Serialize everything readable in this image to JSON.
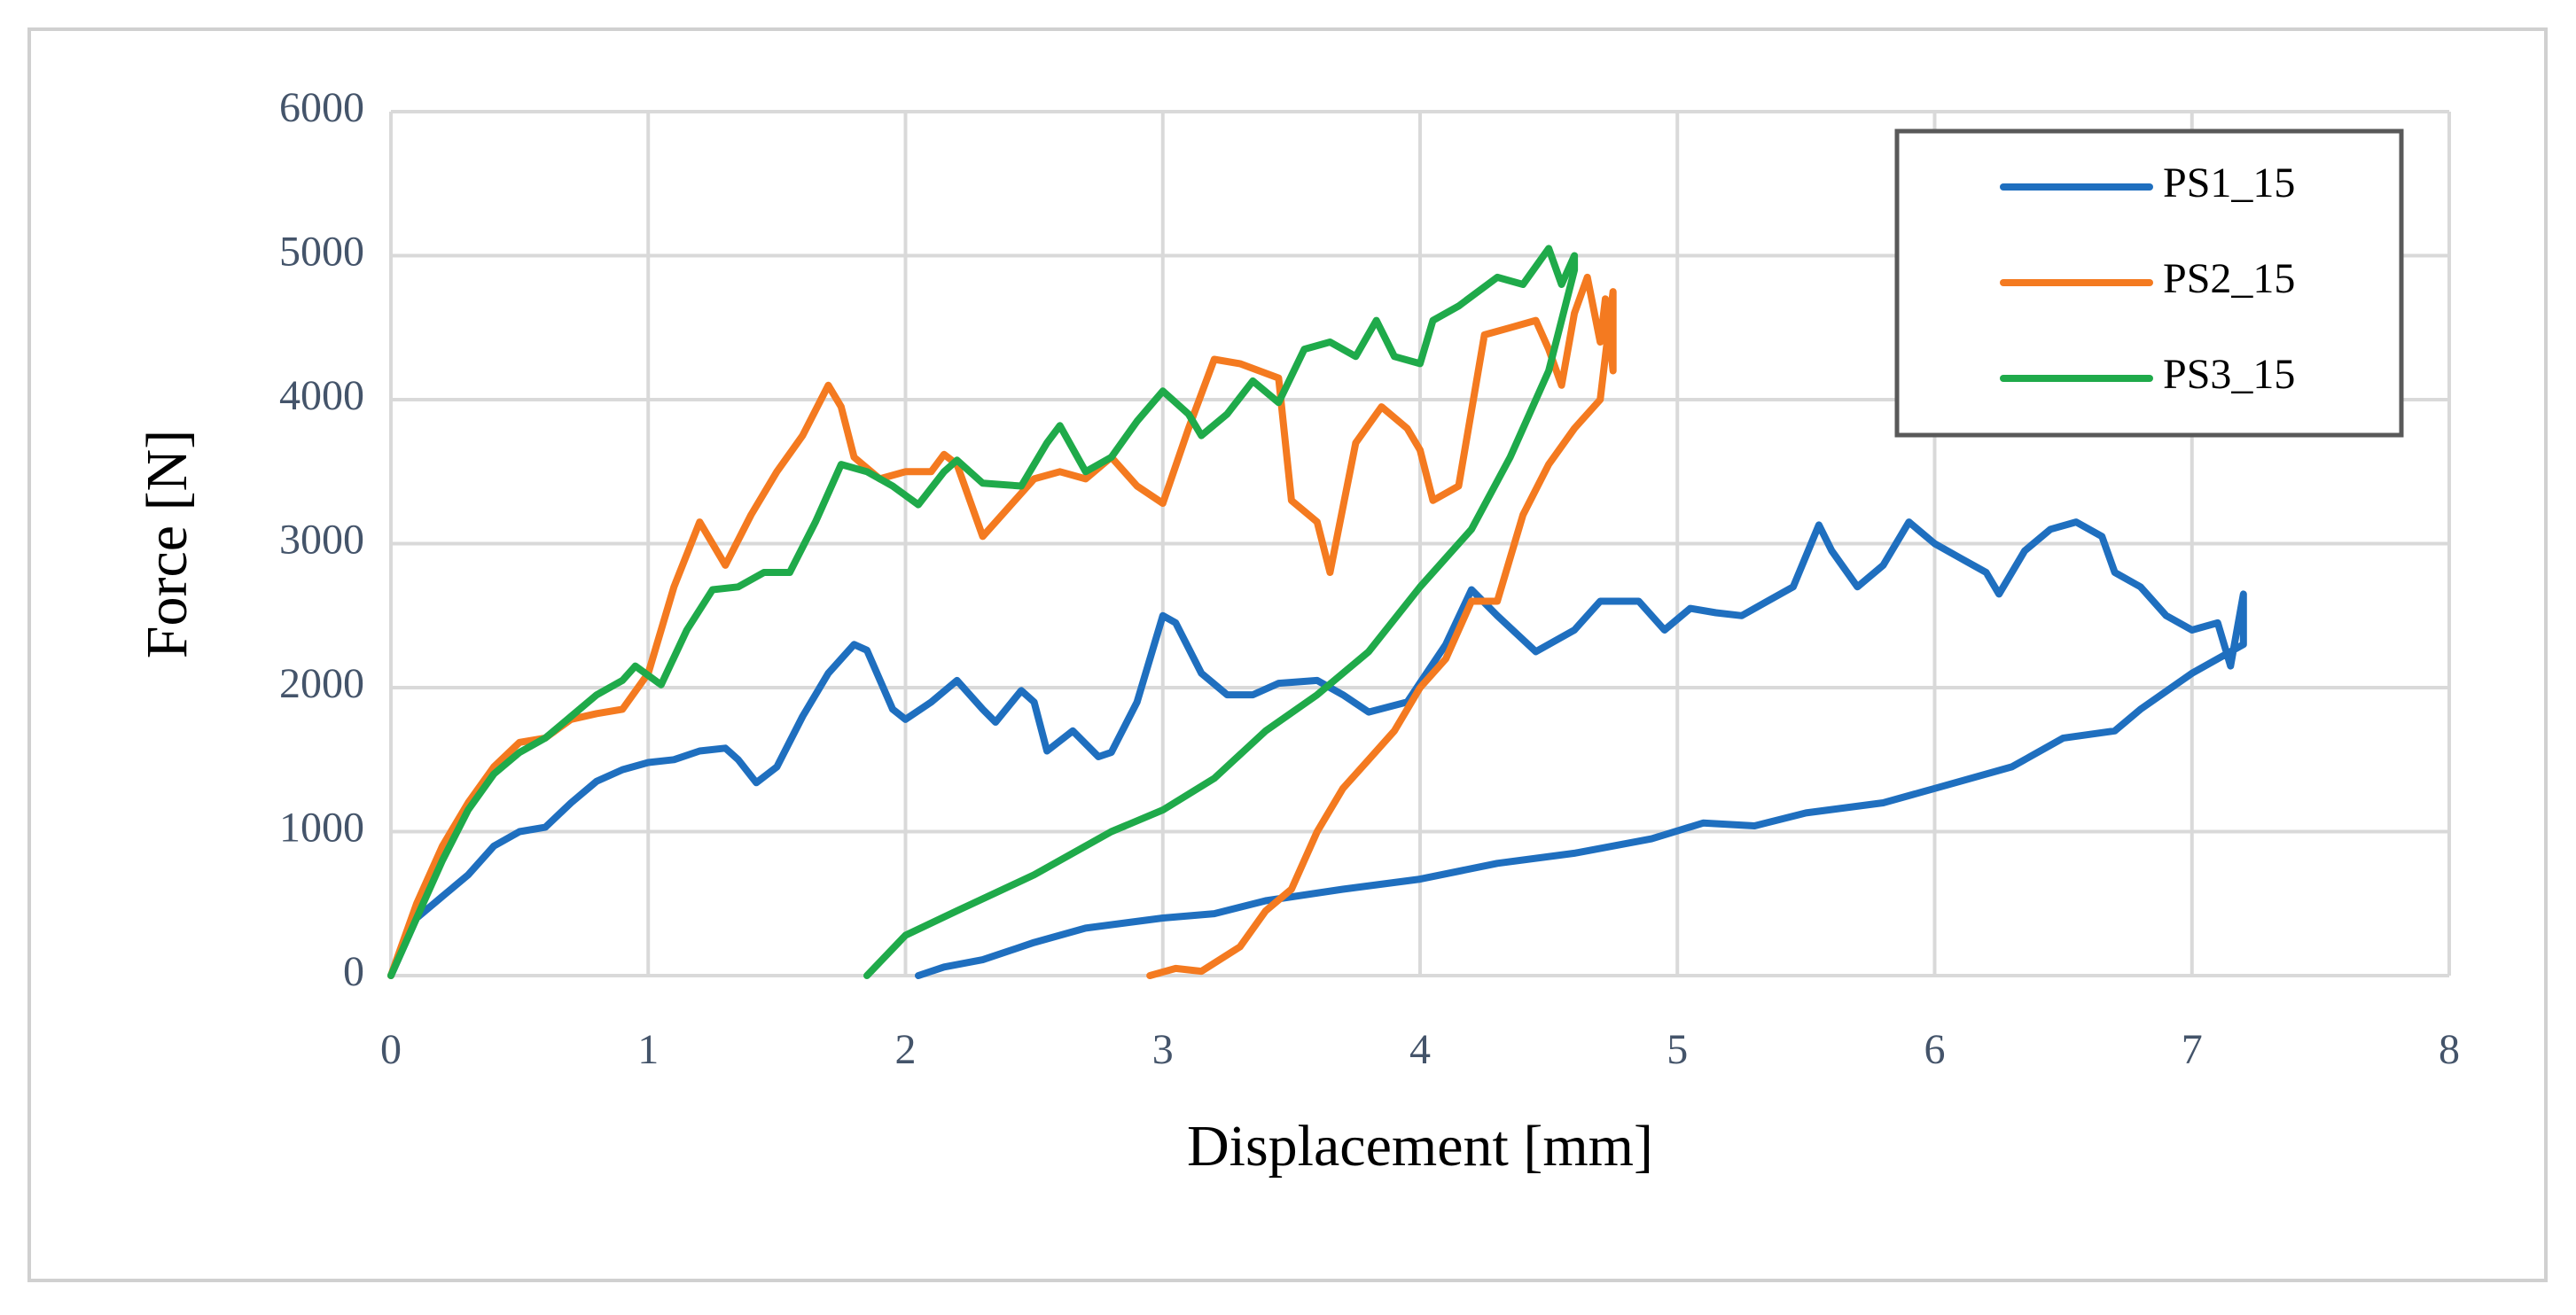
{
  "chart_data": {
    "type": "line",
    "x_label": "Displacement [mm]",
    "y_label": "Force [N]",
    "xlim": [
      0,
      8
    ],
    "ylim": [
      0,
      6000
    ],
    "xticks": [
      0,
      1,
      2,
      3,
      4,
      5,
      6,
      7,
      8
    ],
    "yticks": [
      0,
      1000,
      2000,
      3000,
      4000,
      5000,
      6000
    ],
    "grid": true,
    "legend": "upper right",
    "series": [
      {
        "name": "PS1_15",
        "color": "#1f6fbf",
        "x": [
          0,
          0.1,
          0.2,
          0.3,
          0.4,
          0.5,
          0.6,
          0.7,
          0.8,
          0.9,
          1.0,
          1.1,
          1.2,
          1.3,
          1.35,
          1.42,
          1.5,
          1.6,
          1.7,
          1.8,
          1.85,
          1.95,
          2.0,
          2.1,
          2.2,
          2.3,
          2.35,
          2.45,
          2.5,
          2.55,
          2.65,
          2.75,
          2.8,
          2.9,
          3.0,
          3.05,
          3.15,
          3.25,
          3.35,
          3.45,
          3.6,
          3.7,
          3.8,
          3.95,
          4.1,
          4.2,
          4.3,
          4.45,
          4.6,
          4.7,
          4.85,
          4.95,
          5.05,
          5.15,
          5.25,
          5.35,
          5.45,
          5.55,
          5.6,
          5.7,
          5.8,
          5.9,
          6.0,
          6.1,
          6.2,
          6.25,
          6.35,
          6.45,
          6.55,
          6.65,
          6.7,
          6.8,
          6.9,
          7.0,
          7.1,
          7.15,
          7.2,
          7.2,
          7.0,
          6.8,
          6.7,
          6.5,
          6.3,
          6.0,
          5.8,
          5.5,
          5.3,
          5.1,
          4.9,
          4.6,
          4.3,
          4.0,
          3.7,
          3.4,
          3.2,
          3.0,
          2.7,
          2.5,
          2.3,
          2.15,
          2.05
        ],
        "values": [
          0,
          400,
          550,
          700,
          900,
          1000,
          1030,
          1200,
          1350,
          1430,
          1480,
          1500,
          1560,
          1580,
          1500,
          1340,
          1450,
          1800,
          2100,
          2300,
          2260,
          1850,
          1780,
          1900,
          2050,
          1850,
          1760,
          1980,
          1900,
          1560,
          1700,
          1520,
          1550,
          1900,
          2500,
          2450,
          2100,
          1950,
          1950,
          2030,
          2050,
          1950,
          1830,
          1900,
          2300,
          2680,
          2500,
          2250,
          2400,
          2600,
          2600,
          2400,
          2550,
          2520,
          2500,
          2600,
          2700,
          3130,
          2950,
          2700,
          2850,
          3150,
          3000,
          2900,
          2800,
          2650,
          2950,
          3100,
          3150,
          3050,
          2800,
          2700,
          2500,
          2400,
          2450,
          2150,
          2650,
          2300,
          2100,
          1850,
          1700,
          1650,
          1450,
          1300,
          1200,
          1130,
          1040,
          1060,
          950,
          850,
          780,
          670,
          600,
          520,
          430,
          400,
          330,
          230,
          110,
          60,
          0
        ]
      },
      {
        "name": "PS2_15",
        "color": "#f47a20",
        "x": [
          0,
          0.1,
          0.2,
          0.3,
          0.4,
          0.5,
          0.6,
          0.7,
          0.8,
          0.9,
          1.0,
          1.1,
          1.2,
          1.25,
          1.3,
          1.4,
          1.5,
          1.6,
          1.7,
          1.75,
          1.8,
          1.9,
          2.0,
          2.1,
          2.15,
          2.2,
          2.3,
          2.4,
          2.5,
          2.6,
          2.7,
          2.8,
          2.9,
          3.0,
          3.1,
          3.2,
          3.3,
          3.45,
          3.5,
          3.6,
          3.65,
          3.75,
          3.85,
          3.95,
          4.0,
          4.05,
          4.15,
          4.25,
          4.35,
          4.45,
          4.5,
          4.55,
          4.6,
          4.65,
          4.7,
          4.72,
          4.75,
          4.75,
          4.7,
          4.6,
          4.5,
          4.4,
          4.3,
          4.2,
          4.1,
          4.0,
          3.9,
          3.8,
          3.7,
          3.6,
          3.5,
          3.4,
          3.3,
          3.15,
          3.05,
          2.95
        ],
        "values": [
          0,
          500,
          900,
          1200,
          1450,
          1620,
          1650,
          1780,
          1820,
          1850,
          2100,
          2700,
          3150,
          3000,
          2850,
          3200,
          3500,
          3750,
          4100,
          3950,
          3600,
          3450,
          3500,
          3500,
          3620,
          3550,
          3050,
          3250,
          3450,
          3500,
          3450,
          3600,
          3400,
          3280,
          3800,
          4280,
          4250,
          4150,
          3300,
          3150,
          2800,
          3700,
          3950,
          3800,
          3650,
          3300,
          3400,
          4450,
          4500,
          4550,
          4350,
          4100,
          4600,
          4850,
          4400,
          4700,
          4200,
          4750,
          4000,
          3800,
          3550,
          3200,
          2600,
          2600,
          2200,
          2000,
          1700,
          1500,
          1300,
          1000,
          600,
          450,
          200,
          30,
          50,
          0
        ]
      },
      {
        "name": "PS3_15",
        "color": "#1faa4a",
        "x": [
          0,
          0.1,
          0.2,
          0.3,
          0.4,
          0.5,
          0.6,
          0.7,
          0.8,
          0.9,
          0.95,
          1.05,
          1.15,
          1.25,
          1.35,
          1.45,
          1.55,
          1.65,
          1.75,
          1.85,
          1.95,
          2.05,
          2.15,
          2.2,
          2.3,
          2.45,
          2.55,
          2.6,
          2.7,
          2.8,
          2.9,
          3.0,
          3.1,
          3.15,
          3.25,
          3.35,
          3.45,
          3.55,
          3.65,
          3.75,
          3.83,
          3.9,
          4.0,
          4.05,
          4.15,
          4.3,
          4.4,
          4.5,
          4.55,
          4.6,
          4.6,
          4.5,
          4.35,
          4.2,
          4.0,
          3.8,
          3.6,
          3.4,
          3.2,
          3.0,
          2.8,
          2.5,
          2.2,
          2.0,
          1.85
        ],
        "values": [
          0,
          400,
          800,
          1150,
          1400,
          1550,
          1650,
          1800,
          1950,
          2050,
          2150,
          2020,
          2400,
          2680,
          2700,
          2800,
          2800,
          3150,
          3550,
          3500,
          3400,
          3270,
          3500,
          3580,
          3420,
          3400,
          3700,
          3820,
          3500,
          3600,
          3850,
          4060,
          3900,
          3750,
          3900,
          4130,
          3980,
          4350,
          4400,
          4300,
          4550,
          4300,
          4250,
          4550,
          4650,
          4850,
          4800,
          5050,
          4800,
          5000,
          4900,
          4200,
          3600,
          3100,
          2700,
          2250,
          1950,
          1700,
          1370,
          1150,
          1000,
          700,
          450,
          280,
          0
        ]
      }
    ]
  }
}
